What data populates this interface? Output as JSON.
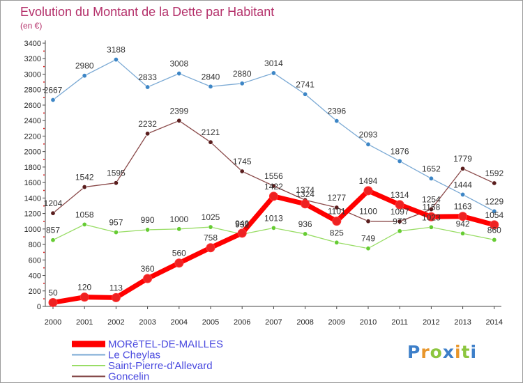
{
  "chart_data": {
    "type": "line",
    "title": "Evolution du Montant de la Dette par Habitant",
    "unit_label": "(en €)",
    "x": [
      "2000",
      "2001",
      "2002",
      "2003",
      "2004",
      "2005",
      "2006",
      "2007",
      "2008",
      "2009",
      "2010",
      "2011",
      "2012",
      "2013",
      "2014"
    ],
    "ylim": [
      0,
      3400
    ],
    "yticks": [
      0,
      200,
      400,
      600,
      800,
      1000,
      1200,
      1400,
      1600,
      1800,
      2000,
      2200,
      2400,
      2600,
      2800,
      3000,
      3200,
      3400
    ],
    "grid": false,
    "legend_position": "bottom-left",
    "series": [
      {
        "name": "MORêTEL-DE-MAILLES",
        "color": "#ff0000",
        "values": [
          50,
          120,
          113,
          360,
          560,
          758,
          946,
          1422,
          1324,
          1101,
          1494,
          1314,
          1158,
          1163,
          1054
        ]
      },
      {
        "name": "Le Cheylas",
        "color": "#7aa9d4",
        "values": [
          2667,
          2980,
          3188,
          2833,
          3008,
          2840,
          2880,
          3014,
          2741,
          2396,
          2093,
          1876,
          1652,
          1444,
          1229
        ]
      },
      {
        "name": "Saint-Pierre-d'Allevard",
        "color": "#99dd66",
        "values": [
          857,
          1058,
          957,
          990,
          1000,
          1025,
          932,
          1013,
          936,
          825,
          749,
          973,
          1023,
          942,
          860
        ]
      },
      {
        "name": "Goncelin",
        "color": "#7b3b3b",
        "values": [
          1204,
          1542,
          1595,
          2232,
          2399,
          2121,
          1745,
          1556,
          1374,
          1277,
          1100,
          1097,
          1254,
          1779,
          1592
        ]
      }
    ]
  },
  "logo": {
    "text": "Proxiti",
    "colors": [
      "#3d7fc9",
      "#e8962b",
      "#8cc63f",
      "#3d7fc9",
      "#e8962b",
      "#8cc63f",
      "#3d7fc9"
    ]
  }
}
